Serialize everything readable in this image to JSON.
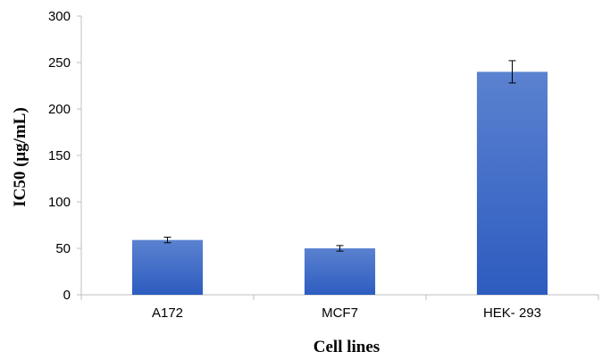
{
  "chart_data": {
    "type": "bar",
    "categories": [
      "A172",
      "MCF7",
      "HEK- 293"
    ],
    "values": [
      59,
      50,
      240
    ],
    "errors": [
      3,
      3,
      12
    ],
    "title": "",
    "xlabel": "Cell lines",
    "ylabel": "IC50 (μg/mL)",
    "ylim": [
      0,
      300
    ],
    "yticks": [
      0,
      50,
      100,
      150,
      200,
      250,
      300
    ],
    "ytick_labels": [
      "0",
      "50",
      "100",
      "150",
      "200",
      "250",
      "300"
    ],
    "grid": false,
    "legend": "none",
    "colors": {
      "bar_top": "#5b82d0",
      "bar_bottom": "#2d5cc0",
      "axis": "#bfbfbf"
    }
  }
}
